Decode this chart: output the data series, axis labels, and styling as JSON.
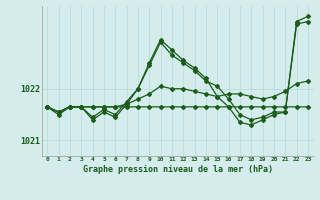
{
  "xlabel": "Graphe pression niveau de la mer (hPa)",
  "bg_color": "#d4ecec",
  "grid_color": "#b8d8d8",
  "line_color": "#1a5c1a",
  "hours": [
    0,
    1,
    2,
    3,
    4,
    5,
    6,
    7,
    8,
    9,
    10,
    11,
    12,
    13,
    14,
    15,
    16,
    17,
    18,
    19,
    20,
    21,
    22,
    23
  ],
  "series1": [
    1021.65,
    1021.55,
    1021.65,
    1021.65,
    1021.65,
    1021.65,
    1021.65,
    1021.65,
    1021.65,
    1021.65,
    1021.65,
    1021.65,
    1021.65,
    1021.65,
    1021.65,
    1021.65,
    1021.65,
    1021.65,
    1021.65,
    1021.65,
    1021.65,
    1021.65,
    1021.65,
    1021.65
  ],
  "series2": [
    1021.65,
    1021.55,
    1021.65,
    1021.65,
    1021.65,
    1021.65,
    1021.65,
    1021.7,
    1021.8,
    1021.9,
    1022.05,
    1022.0,
    1022.0,
    1021.95,
    1021.9,
    1021.85,
    1021.9,
    1021.9,
    1021.85,
    1021.8,
    1021.85,
    1021.95,
    1022.1,
    1022.15
  ],
  "series3": [
    1021.65,
    1021.55,
    1021.65,
    1021.65,
    1021.45,
    1021.6,
    1021.5,
    1021.75,
    1022.0,
    1022.45,
    1022.9,
    1022.65,
    1022.5,
    1022.35,
    1022.15,
    1022.05,
    1021.8,
    1021.5,
    1021.4,
    1021.45,
    1021.55,
    1021.55,
    1023.25,
    1023.3
  ],
  "series4": [
    1021.65,
    1021.5,
    1021.65,
    1021.65,
    1021.4,
    1021.55,
    1021.45,
    1021.7,
    1022.0,
    1022.5,
    1022.95,
    1022.75,
    1022.55,
    1022.4,
    1022.2,
    1021.85,
    1021.65,
    1021.35,
    1021.3,
    1021.4,
    1021.5,
    1021.55,
    1023.3,
    1023.4
  ],
  "ylim": [
    1020.7,
    1023.6
  ],
  "yticks": [
    1021.0,
    1022.0
  ],
  "xlim": [
    -0.5,
    23.5
  ]
}
